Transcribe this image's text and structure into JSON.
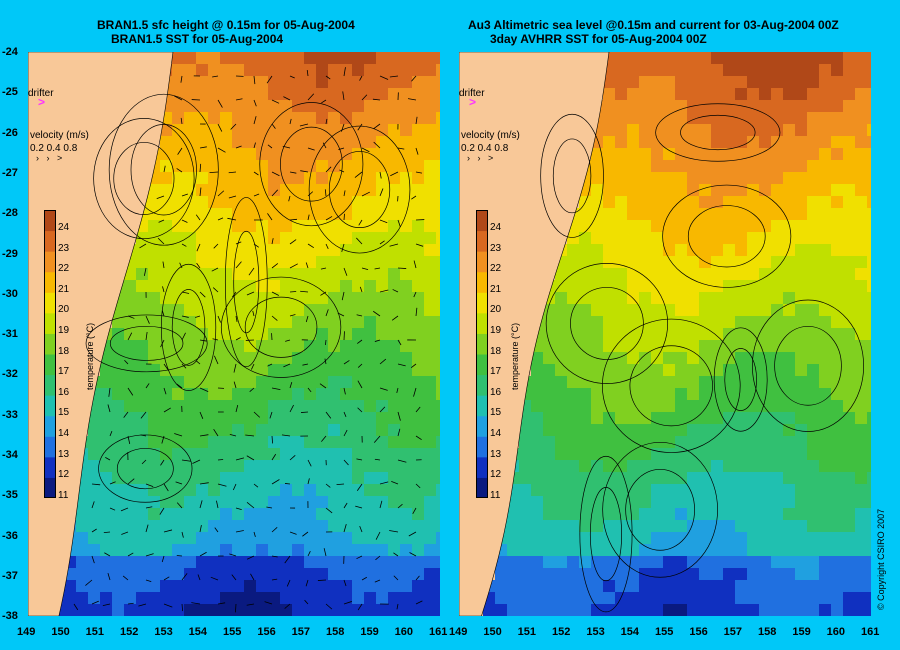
{
  "left": {
    "title_line1": "BRAN1.5 sfc height @ 0.15m for 05-Aug-2004",
    "title_line2": "BRAN1.5 SST for 05-Aug-2004"
  },
  "right": {
    "title_line1": "Au3 Altimetric sea level  @0.15m and current for 03-Aug-2004 00Z",
    "title_line2": "3day AVHRR SST for 05-Aug-2004 00Z"
  },
  "legend": {
    "drifter_label": "drifter",
    "drifter_symbol": ">",
    "drifter_color": "#ff33ff",
    "velocity_label": "velocity (m/s)",
    "velocity_values": "0.2 0.4 0.8",
    "colorbar_title": "temperature (°C)",
    "colorbar_ticks": [
      "24",
      "23",
      "22",
      "21",
      "20",
      "19",
      "18",
      "17",
      "16",
      "15",
      "14",
      "13",
      "12",
      "11"
    ]
  },
  "axes": {
    "lat_ticks": [
      "-24",
      "-25",
      "-26",
      "-27",
      "-28",
      "-29",
      "-30",
      "-31",
      "-32",
      "-33",
      "-34",
      "-35",
      "-36",
      "-37",
      "-38"
    ],
    "lon_ticks": [
      "149",
      "150",
      "151",
      "152",
      "153",
      "154",
      "155",
      "156",
      "157",
      "158",
      "159",
      "160",
      "161"
    ],
    "lat_range": [
      -38,
      -24
    ],
    "lon_range": [
      149,
      161
    ]
  },
  "copyright": "© Copyright CSIRO 2007",
  "colors": {
    "background": "#00c8f8",
    "land": "#f8c898",
    "temperature_scale": [
      "#0a1a80",
      "#1030c0",
      "#2070e0",
      "#20a0e0",
      "#20c0b0",
      "#30c070",
      "#40c040",
      "#80d020",
      "#c0e000",
      "#f0e000",
      "#f8b800",
      "#f09020",
      "#d86820",
      "#b04818"
    ]
  }
}
